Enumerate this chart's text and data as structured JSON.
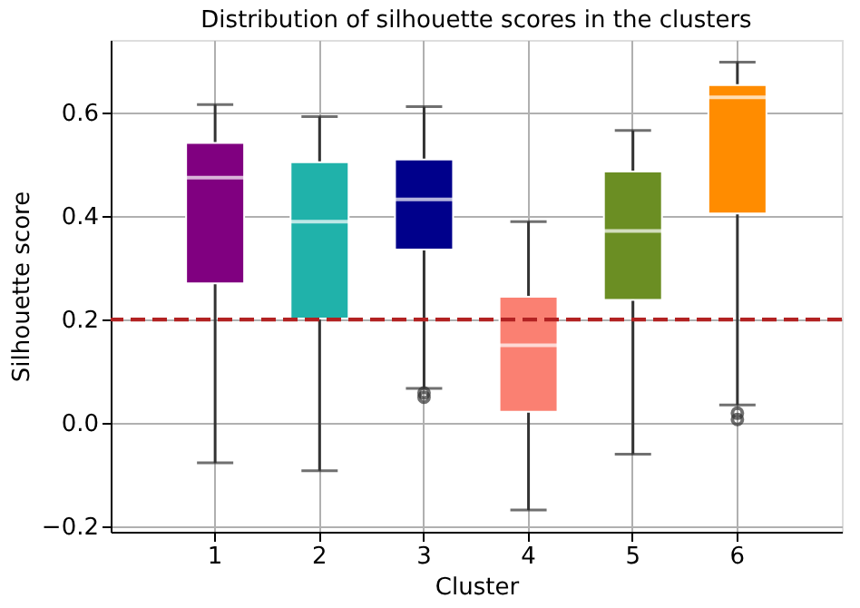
{
  "chart_data": {
    "type": "box",
    "title": "Distribution of silhouette scores in the clusters",
    "xlabel": "Cluster",
    "ylabel": "Silhouette score",
    "categories": [
      "1",
      "2",
      "3",
      "4",
      "5",
      "6"
    ],
    "colors": [
      "#800080",
      "#20b2aa",
      "#00008b",
      "#fa8072",
      "#6b8e23",
      "#ff8c00"
    ],
    "boxes": [
      {
        "low": -0.077,
        "q1": 0.27,
        "median": 0.474,
        "q3": 0.541,
        "high": 0.615
      },
      {
        "low": -0.092,
        "q1": 0.202,
        "median": 0.389,
        "q3": 0.504,
        "high": 0.592
      },
      {
        "low": 0.067,
        "q1": 0.335,
        "median": 0.432,
        "q3": 0.509,
        "high": 0.611,
        "outliers": [
          0.058,
          0.05
        ]
      },
      {
        "low": -0.168,
        "q1": 0.022,
        "median": 0.15,
        "q3": 0.244,
        "high": 0.389
      },
      {
        "low": -0.06,
        "q1": 0.238,
        "median": 0.371,
        "q3": 0.486,
        "high": 0.565
      },
      {
        "low": 0.035,
        "q1": 0.405,
        "median": 0.629,
        "q3": 0.653,
        "high": 0.697,
        "outliers": [
          0.019,
          0.007
        ]
      }
    ],
    "ref_lines": [
      {
        "axis": "y",
        "value": 0.2,
        "color": "#b22222",
        "line_style": "dashed"
      }
    ],
    "ylim": [
      -0.21,
      0.74
    ],
    "yticks": [
      {
        "value": -0.2,
        "label": "−0.2"
      },
      {
        "value": 0,
        "label": "0.0"
      },
      0.2,
      0.4,
      0.6
    ],
    "grid": true
  }
}
